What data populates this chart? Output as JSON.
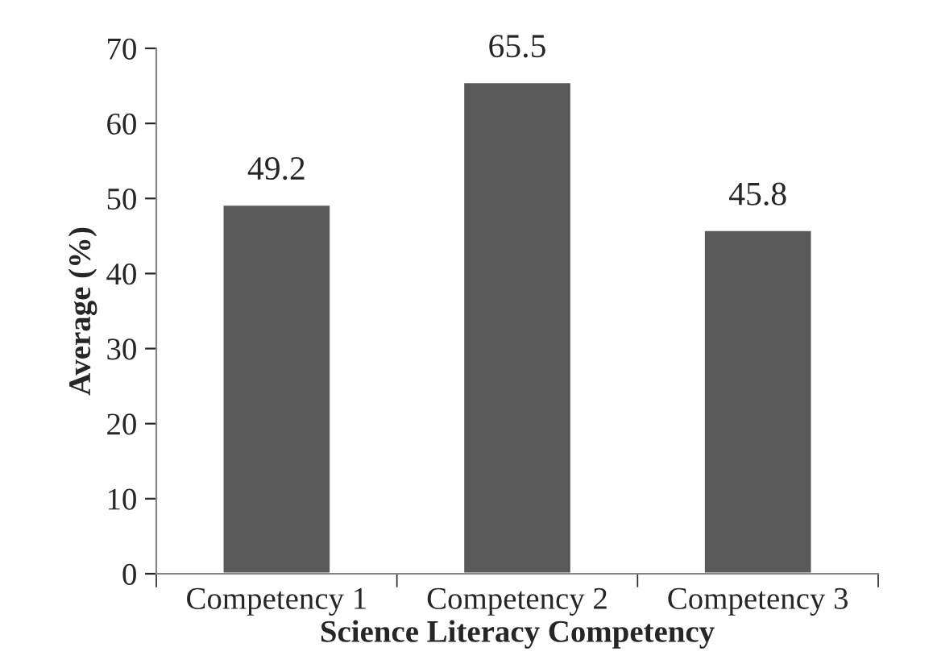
{
  "chart_data": {
    "type": "bar",
    "xlabel": "Science Literacy Competency",
    "ylabel": "Average (%)",
    "categories": [
      "Competency 1",
      "Competency 2",
      "Competency 3"
    ],
    "values": [
      49.2,
      65.5,
      45.8
    ],
    "color": "#595959",
    "ylim": [
      0,
      70
    ],
    "yticks": [
      0,
      10,
      20,
      30,
      40,
      50,
      60,
      70
    ],
    "grid": false,
    "data_labels": true
  }
}
